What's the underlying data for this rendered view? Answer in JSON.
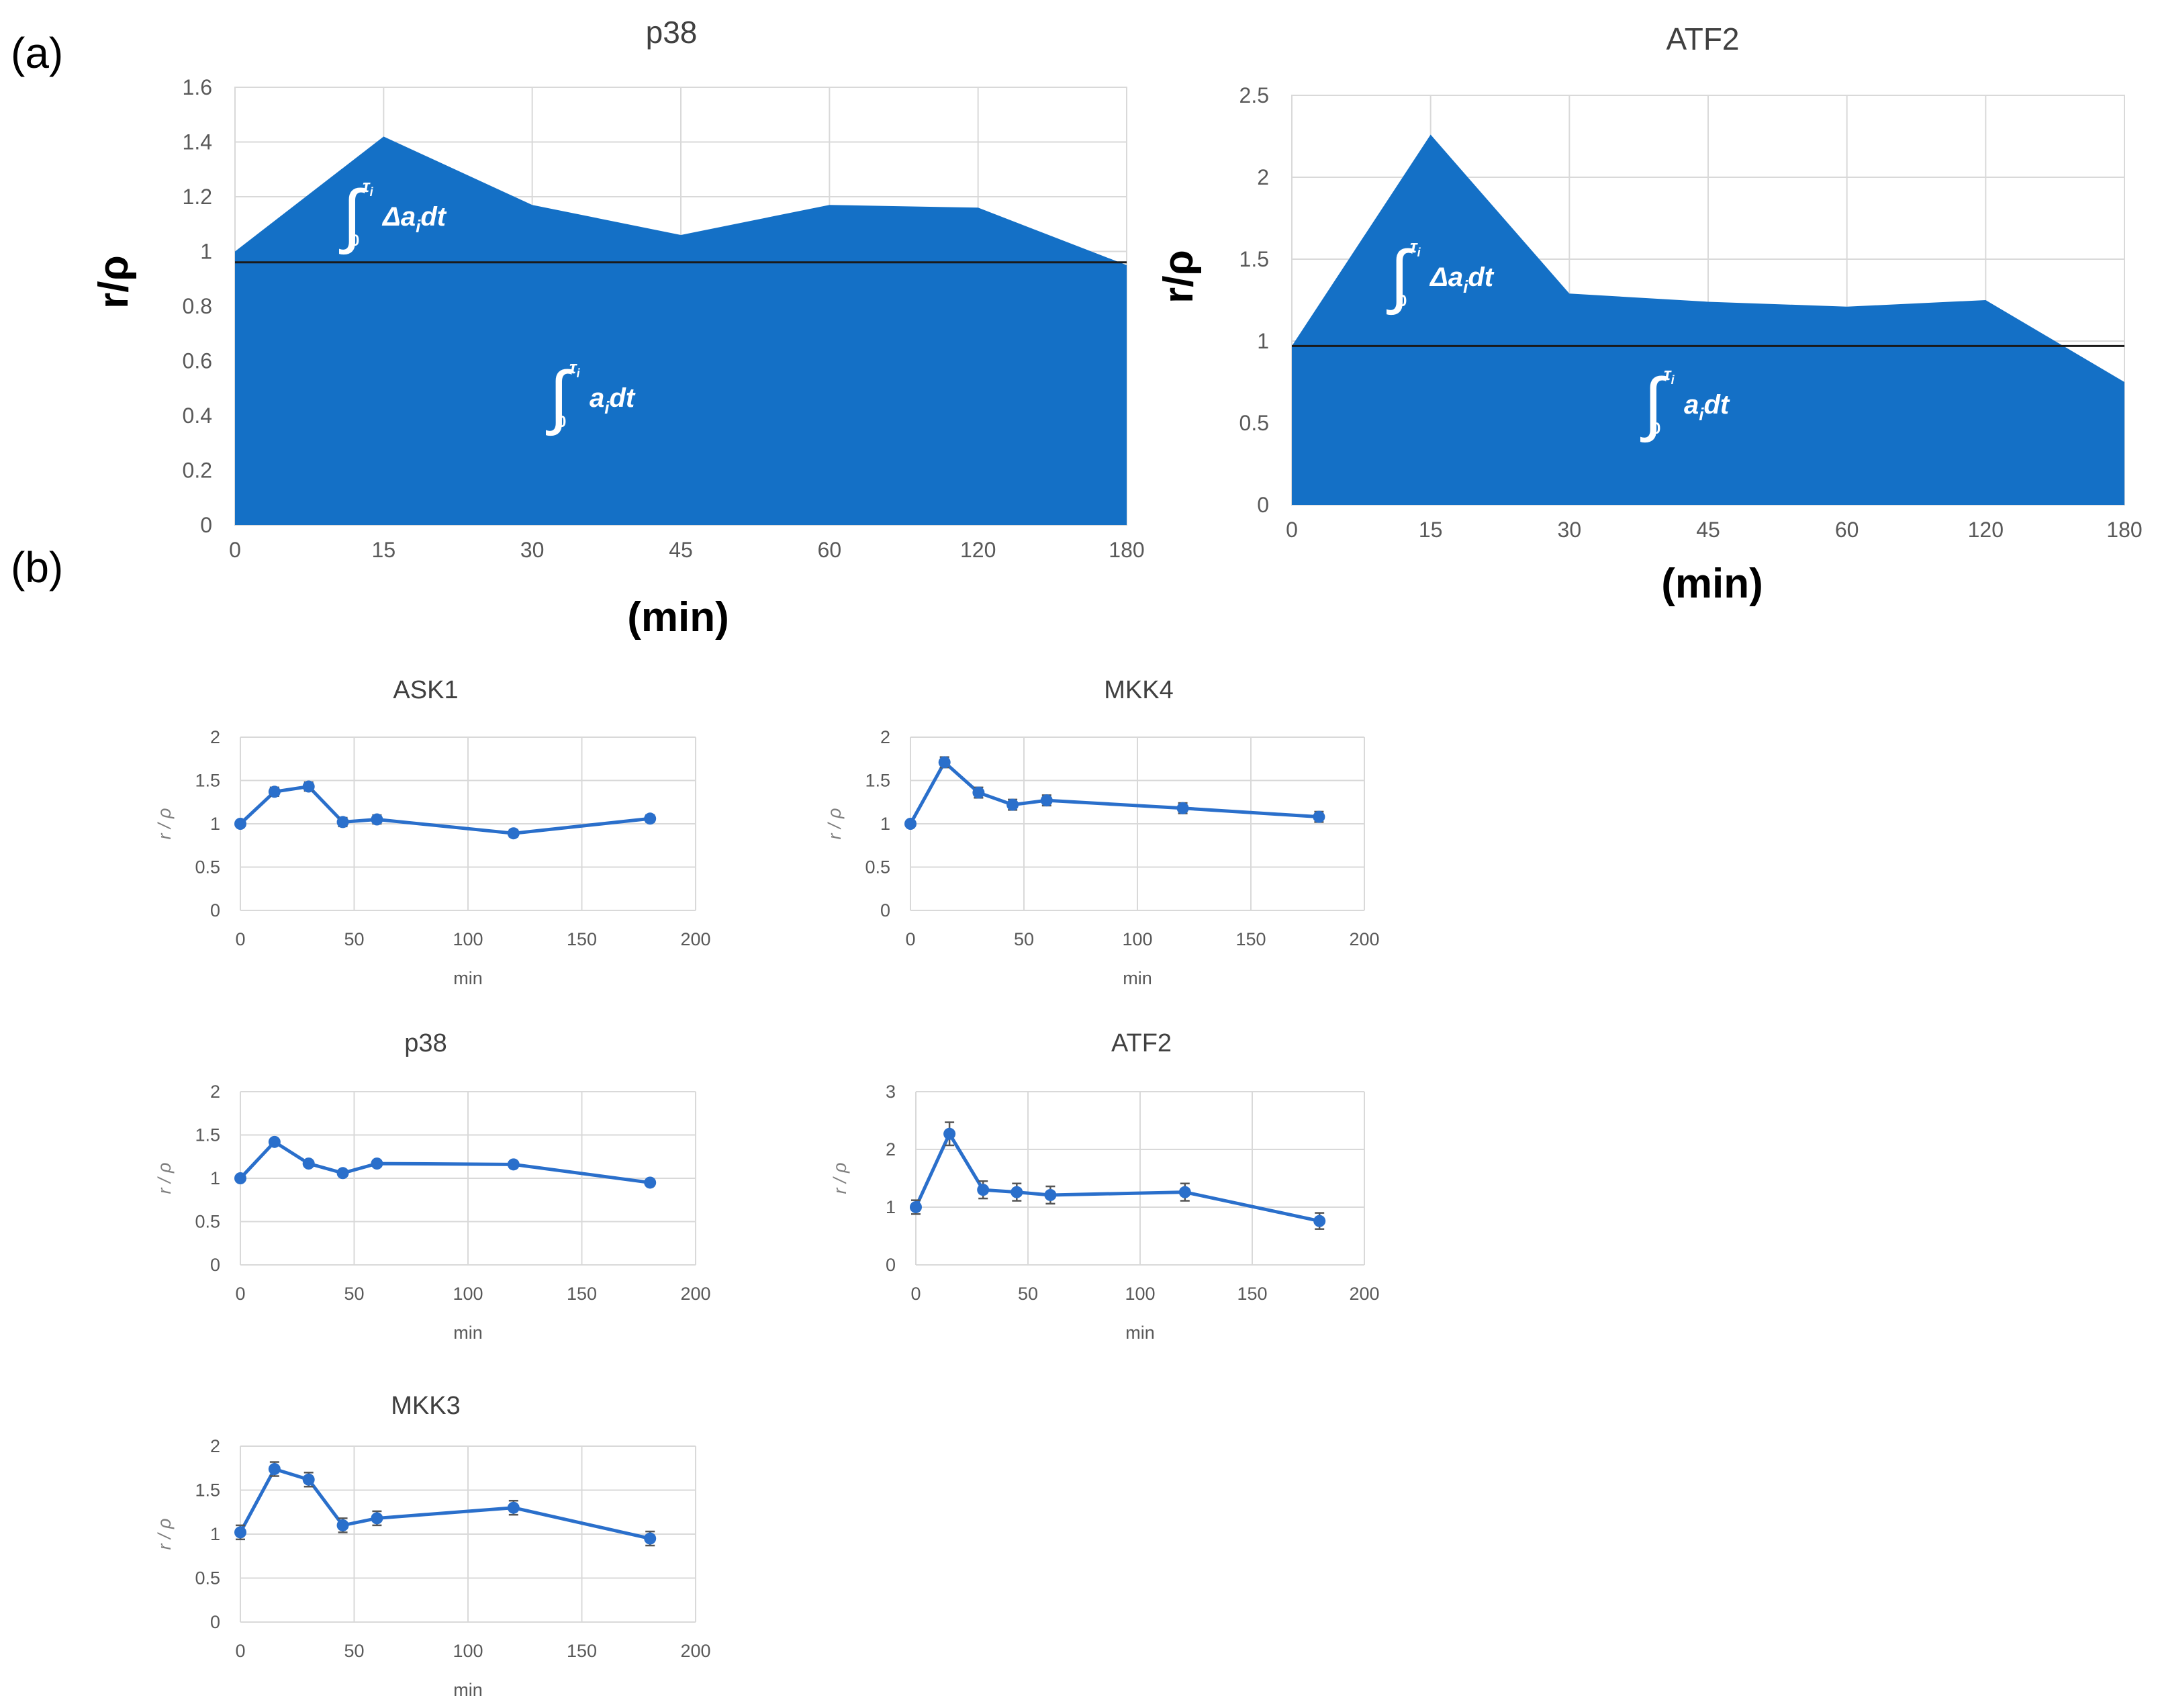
{
  "figure": {
    "label_a": "(a)",
    "label_b": "(b)"
  },
  "annotations": {
    "integral_delta": "Δa",
    "integral_base": "a",
    "integral_sub": "i",
    "integral_dt": "dt",
    "integral_upper": "τ",
    "integral_upper_sub": "i",
    "integral_lower": "0"
  },
  "colors": {
    "fill": "#1470c6",
    "line": "#2a6fcb",
    "grid": "#d9d9d9",
    "tick": "#595959",
    "axis_label_small": "#7f7f7f"
  },
  "chart_data": [
    {
      "type": "area",
      "panel": "a",
      "title": "p38",
      "xlabel": "(min)",
      "ylabel": "r/ρ",
      "categories": [
        "0",
        "15",
        "30",
        "45",
        "60",
        "120",
        "180"
      ],
      "values": [
        1.0,
        1.42,
        1.17,
        1.06,
        1.17,
        1.16,
        0.95
      ],
      "baseline": 0.96,
      "ylim": [
        0,
        1.6
      ],
      "yticks": [
        "0",
        "0.2",
        "0.4",
        "0.6",
        "0.8",
        "1",
        "1.2",
        "1.4",
        "1.6"
      ],
      "grid": true
    },
    {
      "type": "area",
      "panel": "a",
      "title": "ATF2",
      "xlabel": "(min)",
      "ylabel": "r/ρ",
      "categories": [
        "0",
        "15",
        "30",
        "45",
        "60",
        "120",
        "180"
      ],
      "values": [
        0.97,
        2.26,
        1.29,
        1.24,
        1.21,
        1.25,
        0.75
      ],
      "baseline": 0.97,
      "ylim": [
        0,
        2.5
      ],
      "yticks": [
        "0",
        "0.5",
        "1",
        "1.5",
        "2",
        "2.5"
      ],
      "grid": true
    },
    {
      "type": "line",
      "panel": "b",
      "title": "ASK1",
      "xlabel": "min",
      "ylabel": "r / ρ",
      "x": [
        0,
        15,
        30,
        45,
        60,
        120,
        180
      ],
      "values": [
        1.0,
        1.37,
        1.43,
        1.02,
        1.05,
        0.89,
        1.06
      ],
      "errors": [
        0.03,
        0.05,
        0.05,
        0.05,
        0.05,
        0.04,
        0.04
      ],
      "xlim": [
        0,
        200
      ],
      "ylim": [
        0,
        2
      ],
      "xticks": [
        "0",
        "50",
        "100",
        "150",
        "200"
      ],
      "yticks": [
        "0",
        "0.5",
        "1",
        "1.5",
        "2"
      ]
    },
    {
      "type": "line",
      "panel": "b",
      "title": "MKK4",
      "xlabel": "min",
      "ylabel": "r / ρ",
      "x": [
        0,
        15,
        30,
        45,
        60,
        120,
        180
      ],
      "values": [
        1.0,
        1.71,
        1.36,
        1.22,
        1.27,
        1.18,
        1.08
      ],
      "errors": [
        0.03,
        0.06,
        0.06,
        0.06,
        0.06,
        0.06,
        0.06
      ],
      "xlim": [
        0,
        200
      ],
      "ylim": [
        0,
        2
      ],
      "xticks": [
        "0",
        "50",
        "100",
        "150",
        "200"
      ],
      "yticks": [
        "0",
        "0.5",
        "1",
        "1.5",
        "2"
      ]
    },
    {
      "type": "line",
      "panel": "b",
      "title": "p38",
      "xlabel": "min",
      "ylabel": "r / ρ",
      "x": [
        0,
        15,
        30,
        45,
        60,
        120,
        180
      ],
      "values": [
        1.0,
        1.42,
        1.17,
        1.06,
        1.17,
        1.16,
        0.95
      ],
      "errors": [
        0.02,
        0.03,
        0.03,
        0.03,
        0.03,
        0.03,
        0.03
      ],
      "xlim": [
        0,
        200
      ],
      "ylim": [
        0,
        2
      ],
      "xticks": [
        "0",
        "50",
        "100",
        "150",
        "200"
      ],
      "yticks": [
        "0",
        "0.5",
        "1",
        "1.5",
        "2"
      ]
    },
    {
      "type": "line",
      "panel": "b",
      "title": "ATF2",
      "xlabel": "min",
      "ylabel": "r / ρ",
      "x": [
        0,
        15,
        30,
        45,
        60,
        120,
        180
      ],
      "values": [
        1.0,
        2.27,
        1.3,
        1.26,
        1.21,
        1.26,
        0.76
      ],
      "errors": [
        0.12,
        0.2,
        0.15,
        0.15,
        0.15,
        0.15,
        0.14
      ],
      "xlim": [
        0,
        200
      ],
      "ylim": [
        0,
        3
      ],
      "xticks": [
        "0",
        "50",
        "100",
        "150",
        "200"
      ],
      "yticks": [
        "0",
        "1",
        "2",
        "3"
      ]
    },
    {
      "type": "line",
      "panel": "b",
      "title": "MKK3",
      "xlabel": "min",
      "ylabel": "r / ρ",
      "x": [
        0,
        15,
        30,
        45,
        60,
        120,
        180
      ],
      "values": [
        1.02,
        1.74,
        1.62,
        1.1,
        1.18,
        1.3,
        0.95
      ],
      "errors": [
        0.08,
        0.08,
        0.08,
        0.08,
        0.08,
        0.08,
        0.08
      ],
      "xlim": [
        0,
        200
      ],
      "ylim": [
        0,
        2
      ],
      "xticks": [
        "0",
        "50",
        "100",
        "150",
        "200"
      ],
      "yticks": [
        "0",
        "0.5",
        "1",
        "1.5",
        "2"
      ]
    }
  ]
}
